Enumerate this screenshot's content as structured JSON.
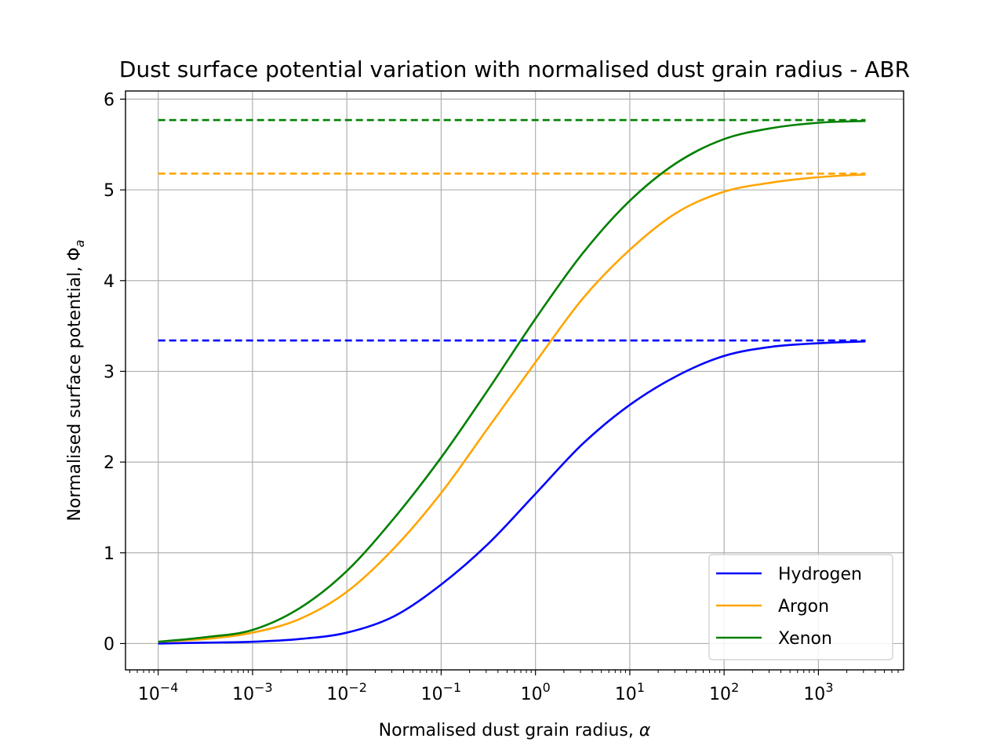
{
  "chart_data": {
    "type": "line",
    "title": "Dust surface potential variation with normalised dust grain radius - ABR",
    "xlabel": "Normalised dust grain radius, ",
    "xlabel_symbol": "α",
    "ylabel": "Normalised surface potential, ",
    "ylabel_symbol": "Φ",
    "ylabel_subscript": "a",
    "xscale": "log",
    "xlim": [
      4.5e-05,
      8000
    ],
    "ylim": [
      -0.29,
      6.09
    ],
    "x_ticks": [
      {
        "base": "10",
        "exp": "−4",
        "value": 0.0001
      },
      {
        "base": "10",
        "exp": "−3",
        "value": 0.001
      },
      {
        "base": "10",
        "exp": "−2",
        "value": 0.01
      },
      {
        "base": "10",
        "exp": "−1",
        "value": 0.1
      },
      {
        "base": "10",
        "exp": "0",
        "value": 1
      },
      {
        "base": "10",
        "exp": "1",
        "value": 10
      },
      {
        "base": "10",
        "exp": "2",
        "value": 100
      },
      {
        "base": "10",
        "exp": "3",
        "value": 1000
      }
    ],
    "y_ticks": [
      "0",
      "1",
      "2",
      "3",
      "4",
      "5",
      "6"
    ],
    "grid": true,
    "legend_position": "lower-right",
    "series": [
      {
        "name": "Hydrogen",
        "color": "#0000ff",
        "asymptote": 3.34,
        "x": [
          0.0001,
          0.000316,
          0.001,
          0.00316,
          0.01,
          0.0316,
          0.1,
          0.316,
          1,
          3.16,
          10,
          31.6,
          100,
          316,
          1000,
          3160
        ],
        "y": [
          0.0,
          0.01,
          0.02,
          0.05,
          0.12,
          0.3,
          0.65,
          1.1,
          1.65,
          2.2,
          2.63,
          2.95,
          3.17,
          3.27,
          3.31,
          3.33
        ]
      },
      {
        "name": "Argon",
        "color": "#ffa500",
        "asymptote": 5.18,
        "x": [
          0.0001,
          0.000316,
          0.001,
          0.00316,
          0.01,
          0.0316,
          0.1,
          0.316,
          1,
          3.16,
          10,
          31.6,
          100,
          316,
          1000,
          3160
        ],
        "y": [
          0.02,
          0.05,
          0.12,
          0.27,
          0.57,
          1.05,
          1.66,
          2.38,
          3.1,
          3.8,
          4.34,
          4.75,
          4.98,
          5.08,
          5.14,
          5.17
        ]
      },
      {
        "name": "Xenon",
        "color": "#008000",
        "asymptote": 5.77,
        "x": [
          0.0001,
          0.000316,
          0.001,
          0.00316,
          0.01,
          0.0316,
          0.1,
          0.316,
          1,
          3.16,
          10,
          31.6,
          100,
          316,
          1000,
          3160
        ],
        "y": [
          0.02,
          0.07,
          0.15,
          0.39,
          0.8,
          1.38,
          2.05,
          2.8,
          3.58,
          4.3,
          4.88,
          5.3,
          5.56,
          5.68,
          5.74,
          5.76
        ]
      }
    ]
  }
}
